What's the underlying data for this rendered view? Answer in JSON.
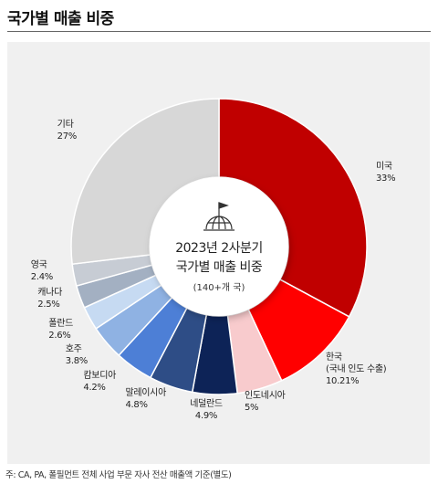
{
  "header": {
    "title": "국가별 매출 비중"
  },
  "center": {
    "line1": "2023년 2사분기",
    "line2": "국가별 매출 비중",
    "sub": "(140+개 국)",
    "icon": "globe-flag-icon"
  },
  "footnote": "주: CA, PA, 폴필먼트 전체 사업 부문 자사 전산 매출액 기준(별도)",
  "colors": {
    "panel": "#f0f0f0"
  },
  "chart_data": {
    "type": "pie",
    "title": "2023년 2사분기 국가별 매출 비중",
    "slices": [
      {
        "label": "미국",
        "pct_text": "33%",
        "value": 33,
        "color": "#c00000"
      },
      {
        "label": "한국",
        "label2": "(국내 인도 수출)",
        "pct_text": "10.21%",
        "value": 10.21,
        "color": "#ff0000"
      },
      {
        "label": "인도네시아",
        "pct_text": "5%",
        "value": 5,
        "color": "#f8cbcd"
      },
      {
        "label": "네덜란드",
        "pct_text": "4.9%",
        "value": 4.9,
        "color": "#0d2357"
      },
      {
        "label": "말레이시아",
        "pct_text": "4.8%",
        "value": 4.8,
        "color": "#2e4d86"
      },
      {
        "label": "캄보디아",
        "pct_text": "4.2%",
        "value": 4.2,
        "color": "#4d7fd6"
      },
      {
        "label": "호주",
        "pct_text": "3.8%",
        "value": 3.8,
        "color": "#8fb2e3"
      },
      {
        "label": "폴란드",
        "pct_text": "2.6%",
        "value": 2.6,
        "color": "#c6daf2"
      },
      {
        "label": "캐나다",
        "pct_text": "2.5%",
        "value": 2.5,
        "color": "#a3b0c2"
      },
      {
        "label": "영국",
        "pct_text": "2.4%",
        "value": 2.4,
        "color": "#c7ccd4"
      },
      {
        "label": "기타",
        "pct_text": "27%",
        "value": 27,
        "color": "#d7d7d7"
      }
    ]
  }
}
